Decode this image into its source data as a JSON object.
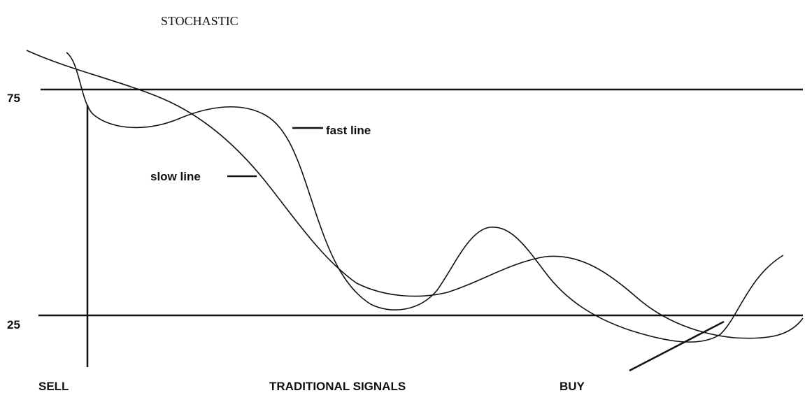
{
  "title": "STOCHASTIC",
  "levels": [
    "75",
    "25"
  ],
  "curve_labels": {
    "fast": "fast line",
    "slow": "slow line"
  },
  "signals": {
    "sell": "SELL",
    "caption": "TRADITIONAL SIGNALS",
    "buy": "BUY"
  }
}
